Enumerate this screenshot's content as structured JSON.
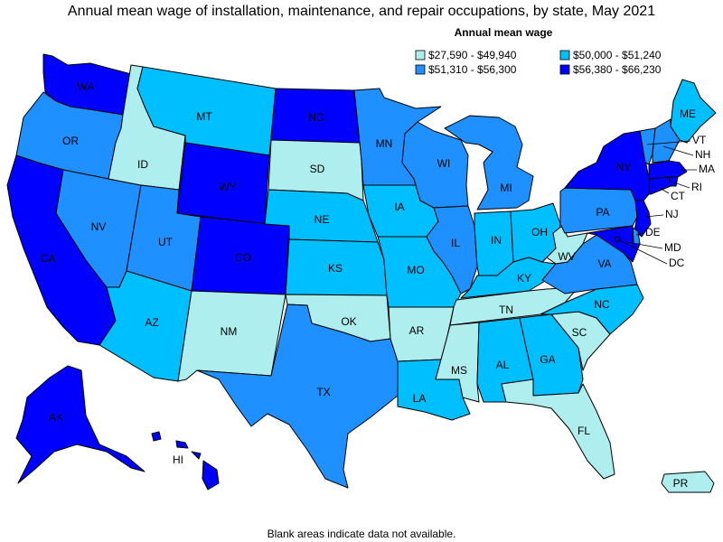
{
  "title": "Annual mean wage of installation, maintenance, and repair occupations, by state, May 2021",
  "legend": {
    "title": "Annual mean wage",
    "bins": [
      {
        "label": "$27,590 - $49,940",
        "color": "#aeeeee"
      },
      {
        "label": "$50,000 - $51,240",
        "color": "#00bfff"
      },
      {
        "label": "$51,310 - $56,300",
        "color": "#1e90ff"
      },
      {
        "label": "$56,380 - $66,230",
        "color": "#0000ff"
      }
    ]
  },
  "footnote": "Blank areas indicate data not available.",
  "states": {
    "WA": {
      "label": "WA",
      "bin": 3
    },
    "OR": {
      "label": "OR",
      "bin": 2
    },
    "CA": {
      "label": "CA",
      "bin": 3
    },
    "NV": {
      "label": "NV",
      "bin": 2
    },
    "ID": {
      "label": "ID",
      "bin": 0
    },
    "MT": {
      "label": "MT",
      "bin": 1
    },
    "WY": {
      "label": "WY",
      "bin": 3
    },
    "UT": {
      "label": "UT",
      "bin": 2
    },
    "AZ": {
      "label": "AZ",
      "bin": 1
    },
    "CO": {
      "label": "CO",
      "bin": 3
    },
    "NM": {
      "label": "NM",
      "bin": 0
    },
    "ND": {
      "label": "ND",
      "bin": 3
    },
    "SD": {
      "label": "SD",
      "bin": 0
    },
    "NE": {
      "label": "NE",
      "bin": 1
    },
    "KS": {
      "label": "KS",
      "bin": 1
    },
    "OK": {
      "label": "OK",
      "bin": 0
    },
    "TX": {
      "label": "TX",
      "bin": 2
    },
    "MN": {
      "label": "MN",
      "bin": 2
    },
    "IA": {
      "label": "IA",
      "bin": 1
    },
    "MO": {
      "label": "MO",
      "bin": 1
    },
    "AR": {
      "label": "AR",
      "bin": 0
    },
    "LA": {
      "label": "LA",
      "bin": 1
    },
    "WI": {
      "label": "WI",
      "bin": 2
    },
    "IL": {
      "label": "IL",
      "bin": 2
    },
    "MI": {
      "label": "MI",
      "bin": 2
    },
    "IN": {
      "label": "IN",
      "bin": 1
    },
    "OH": {
      "label": "OH",
      "bin": 1
    },
    "KY": {
      "label": "KY",
      "bin": 1
    },
    "TN": {
      "label": "TN",
      "bin": 0
    },
    "MS": {
      "label": "MS",
      "bin": 0
    },
    "AL": {
      "label": "AL",
      "bin": 1
    },
    "GA": {
      "label": "GA",
      "bin": 1
    },
    "FL": {
      "label": "FL",
      "bin": 0
    },
    "SC": {
      "label": "SC",
      "bin": 0
    },
    "NC": {
      "label": "NC",
      "bin": 1
    },
    "VA": {
      "label": "VA",
      "bin": 2
    },
    "WV": {
      "label": "WV",
      "bin": 0
    },
    "PA": {
      "label": "PA",
      "bin": 2
    },
    "NY": {
      "label": "NY",
      "bin": 3
    },
    "ME": {
      "label": "ME",
      "bin": 1
    },
    "VT": {
      "label": "VT",
      "bin": 2
    },
    "NH": {
      "label": "NH",
      "bin": 2
    },
    "MA": {
      "label": "MA",
      "bin": 3
    },
    "RI": {
      "label": "RI",
      "bin": 3
    },
    "CT": {
      "label": "CT",
      "bin": 3
    },
    "NJ": {
      "label": "NJ",
      "bin": 3
    },
    "DE": {
      "label": "DE",
      "bin": 2
    },
    "MD": {
      "label": "MD",
      "bin": 3
    },
    "DC": {
      "label": "DC",
      "bin": 3
    },
    "AK": {
      "label": "AK",
      "bin": 3
    },
    "HI": {
      "label": "HI",
      "bin": 3
    },
    "PR": {
      "label": "PR",
      "bin": 0
    }
  }
}
